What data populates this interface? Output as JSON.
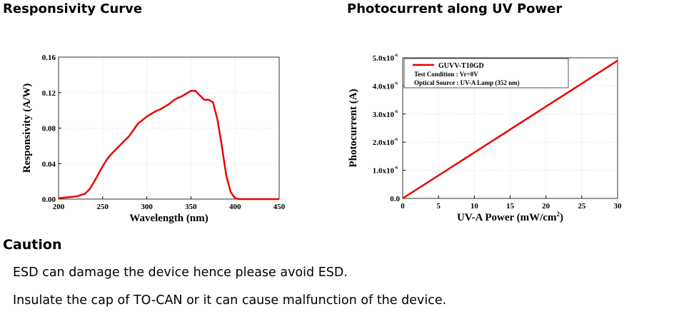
{
  "headings": {
    "left": "Responsivity Curve",
    "right": "Photocurrent along UV Power",
    "caution": "Caution"
  },
  "caution_lines": [
    "ESD can damage the device hence please avoid ESD.",
    "Insulate the cap of TO-CAN or it can cause malfunction of the device."
  ],
  "colors": {
    "series": "#ee0000",
    "grid": "#dddddd"
  },
  "chart_data": [
    {
      "type": "line",
      "title": "Responsivity Curve",
      "xlabel": "Wavelength (nm)",
      "ylabel": "Responsivity (A/W)",
      "xlim": [
        200,
        450
      ],
      "ylim": [
        0,
        0.16
      ],
      "xticks": [
        200,
        250,
        300,
        350,
        400,
        450
      ],
      "yticks": [
        "0.00",
        "0.04",
        "0.08",
        "0.12",
        "0.16"
      ],
      "grid": true,
      "series": [
        {
          "name": "Responsivity",
          "x": [
            200,
            210,
            220,
            230,
            235,
            240,
            245,
            250,
            255,
            260,
            265,
            270,
            275,
            280,
            285,
            290,
            295,
            300,
            305,
            310,
            315,
            320,
            325,
            330,
            335,
            340,
            345,
            350,
            355,
            360,
            365,
            370,
            375,
            380,
            385,
            390,
            395,
            400,
            405,
            450
          ],
          "y": [
            0.001,
            0.002,
            0.003,
            0.006,
            0.011,
            0.019,
            0.028,
            0.037,
            0.045,
            0.051,
            0.056,
            0.061,
            0.066,
            0.071,
            0.078,
            0.085,
            0.089,
            0.093,
            0.096,
            0.099,
            0.101,
            0.104,
            0.107,
            0.111,
            0.114,
            0.116,
            0.119,
            0.122,
            0.122,
            0.117,
            0.112,
            0.112,
            0.109,
            0.09,
            0.06,
            0.027,
            0.008,
            0.001,
            0,
            0
          ]
        }
      ]
    },
    {
      "type": "line",
      "title": "Photocurrent along UV Power",
      "xlabel": "UV-A Power (mW/cm",
      "xlabel_sup": "2",
      "xlabel_end": ")",
      "ylabel": "Photocurrent (A)",
      "xlim": [
        0,
        30
      ],
      "ylim": [
        0,
        5e-06
      ],
      "xticks": [
        0,
        5,
        10,
        15,
        20,
        25,
        30
      ],
      "yticks": [
        {
          "v": 0,
          "label": "0.0",
          "exp": ""
        },
        {
          "v": 1e-06,
          "label": "1.0x10",
          "exp": "-6"
        },
        {
          "v": 2e-06,
          "label": "2.0x10",
          "exp": "-6"
        },
        {
          "v": 3e-06,
          "label": "3.0x10",
          "exp": "-6"
        },
        {
          "v": 4e-06,
          "label": "4.0x10",
          "exp": "-6"
        },
        {
          "v": 5e-06,
          "label": "5.0x10",
          "exp": "-6"
        }
      ],
      "grid": true,
      "legend": {
        "position": "top-left",
        "entries": [
          "GUVV-T10GD",
          "Test Condition : Vr=0V",
          "Optical Source : UV-A Lamp (352 nm)"
        ]
      },
      "series": [
        {
          "name": "GUVV-T10GD",
          "x": [
            0,
            30
          ],
          "y": [
            0,
            4.9e-06
          ]
        }
      ]
    }
  ]
}
